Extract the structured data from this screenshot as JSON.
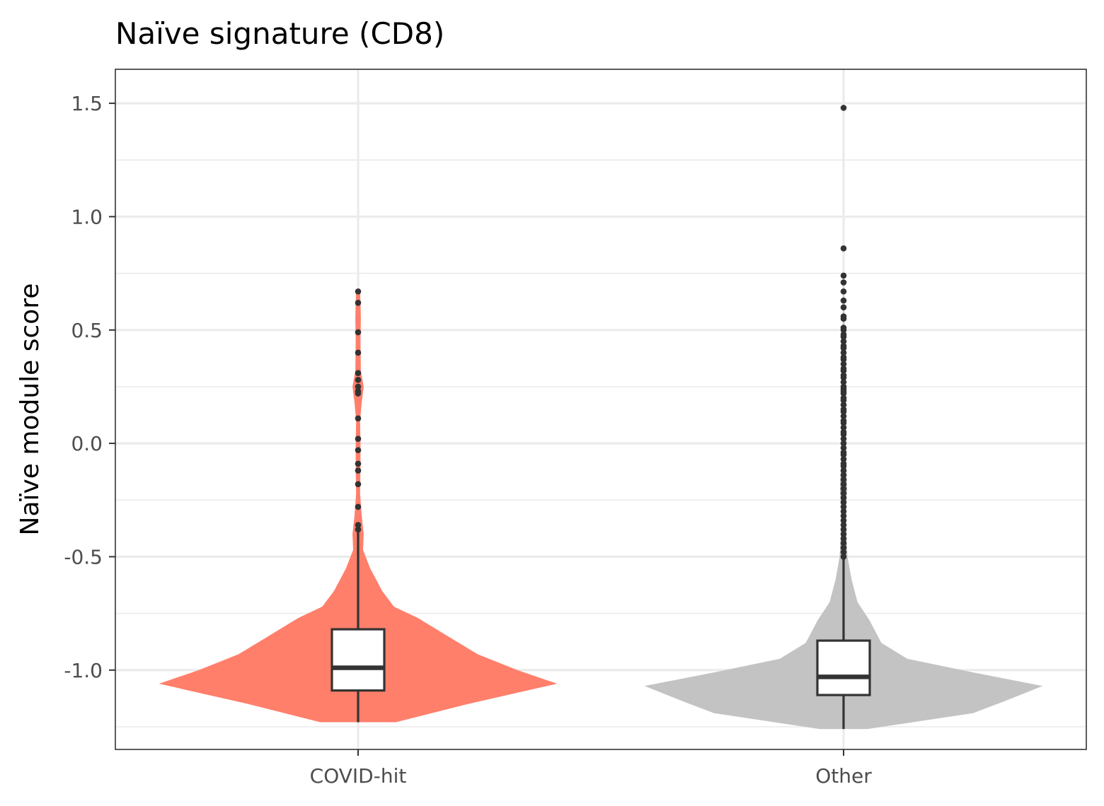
{
  "chart_data": {
    "type": "violin",
    "title": "Naïve signature (CD8)",
    "xlabel": "",
    "ylabel": "Naïve module score",
    "ylim": [
      -1.35,
      1.65
    ],
    "yticks": [
      "-1.0",
      "-0.5",
      "0.0",
      "0.5",
      "1.0",
      "1.5"
    ],
    "grid": true,
    "categories": [
      "COVID-hit",
      "Other"
    ],
    "colors": {
      "COVID-hit": "#FF7F6B",
      "Other": "#C3C3C3"
    },
    "series": [
      {
        "category": "COVID-hit",
        "min": -1.23,
        "q1": -1.09,
        "median": -0.99,
        "q3": -0.82,
        "whisker_low": -1.23,
        "whisker_high": -0.39,
        "outliers": [
          0.67,
          0.62,
          0.49,
          0.4,
          0.31,
          0.28,
          0.25,
          0.23,
          0.22,
          0.11,
          0.02,
          -0.03,
          -0.09,
          -0.12,
          -0.18,
          -0.28,
          -0.36,
          -0.38
        ],
        "density": [
          [
            -1.23,
            0.19
          ],
          [
            -1.15,
            0.55
          ],
          [
            -1.06,
            1.0
          ],
          [
            -1.0,
            0.8
          ],
          [
            -0.93,
            0.6
          ],
          [
            -0.85,
            0.45
          ],
          [
            -0.77,
            0.3
          ],
          [
            -0.72,
            0.18
          ],
          [
            -0.65,
            0.12
          ],
          [
            -0.55,
            0.06
          ],
          [
            -0.47,
            0.025
          ],
          [
            -0.4,
            0.028
          ],
          [
            -0.32,
            0.018
          ],
          [
            -0.22,
            0.01
          ],
          [
            -0.1,
            0.012
          ],
          [
            0.0,
            0.012
          ],
          [
            0.1,
            0.01
          ],
          [
            0.18,
            0.018
          ],
          [
            0.25,
            0.028
          ],
          [
            0.32,
            0.014
          ],
          [
            0.45,
            0.012
          ],
          [
            0.55,
            0.014
          ],
          [
            0.62,
            0.012
          ],
          [
            0.67,
            0.01
          ]
        ]
      },
      {
        "category": "Other",
        "min": -1.26,
        "q1": -1.11,
        "median": -1.03,
        "q3": -0.87,
        "whisker_low": -1.26,
        "whisker_high": -0.5,
        "outliers": [
          1.48,
          0.86,
          0.74,
          0.71,
          0.67,
          0.63,
          0.6,
          0.56,
          0.55,
          0.51,
          0.5,
          0.48,
          0.47,
          0.45,
          0.43,
          0.42,
          0.4,
          0.38,
          0.37,
          0.35,
          0.33,
          0.32,
          0.3,
          0.29,
          0.27,
          0.25,
          0.24,
          0.23,
          0.22,
          0.2,
          0.19,
          0.17,
          0.15,
          0.14,
          0.12,
          0.1,
          0.09,
          0.07,
          0.05,
          0.04,
          0.02,
          0.0,
          -0.02,
          -0.04,
          -0.05,
          -0.07,
          -0.09,
          -0.1,
          -0.12,
          -0.14,
          -0.16,
          -0.18,
          -0.2,
          -0.22,
          -0.24,
          -0.26,
          -0.28,
          -0.3,
          -0.32,
          -0.34,
          -0.36,
          -0.38,
          -0.4,
          -0.42,
          -0.44,
          -0.46,
          -0.48,
          -0.5
        ],
        "density": [
          [
            -1.26,
            0.12
          ],
          [
            -1.19,
            0.65
          ],
          [
            -1.14,
            0.8
          ],
          [
            -1.07,
            1.0
          ],
          [
            -1.01,
            0.65
          ],
          [
            -0.95,
            0.32
          ],
          [
            -0.88,
            0.19
          ],
          [
            -0.78,
            0.13
          ],
          [
            -0.7,
            0.07
          ],
          [
            -0.6,
            0.04
          ],
          [
            -0.5,
            0.02
          ],
          [
            -0.4,
            0.014
          ],
          [
            -0.3,
            0.012
          ],
          [
            -0.2,
            0.018
          ],
          [
            -0.1,
            0.013
          ],
          [
            0.0,
            0.011
          ],
          [
            0.1,
            0.009
          ],
          [
            0.2,
            0.009
          ],
          [
            0.3,
            0.007
          ],
          [
            0.4,
            0.006
          ],
          [
            0.5,
            0.005
          ],
          [
            0.6,
            0.003
          ],
          [
            0.74,
            0.002
          ]
        ]
      }
    ]
  }
}
